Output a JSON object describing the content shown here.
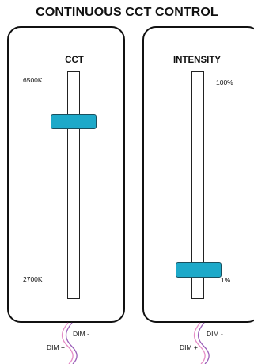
{
  "title": "CONTINUOUS CCT CONTROL",
  "panels": {
    "cct": {
      "label": "CCT",
      "max_label": "6500K",
      "min_label": "2700K",
      "level_fraction": 0.8
    },
    "intensity": {
      "label": "INTENSITY",
      "max_label": "100%",
      "min_label": "1%",
      "level_fraction": 0.1
    }
  },
  "wiring": {
    "cct": {
      "dim_minus": "DIM -",
      "dim_plus": "DIM +"
    },
    "intensity": {
      "dim_minus": "DIM -",
      "dim_plus": "DIM +"
    }
  },
  "colors": {
    "thumb": "#1da9c9",
    "wire_purple": "#9b5fb8",
    "wire_pink": "#e58cc6"
  }
}
